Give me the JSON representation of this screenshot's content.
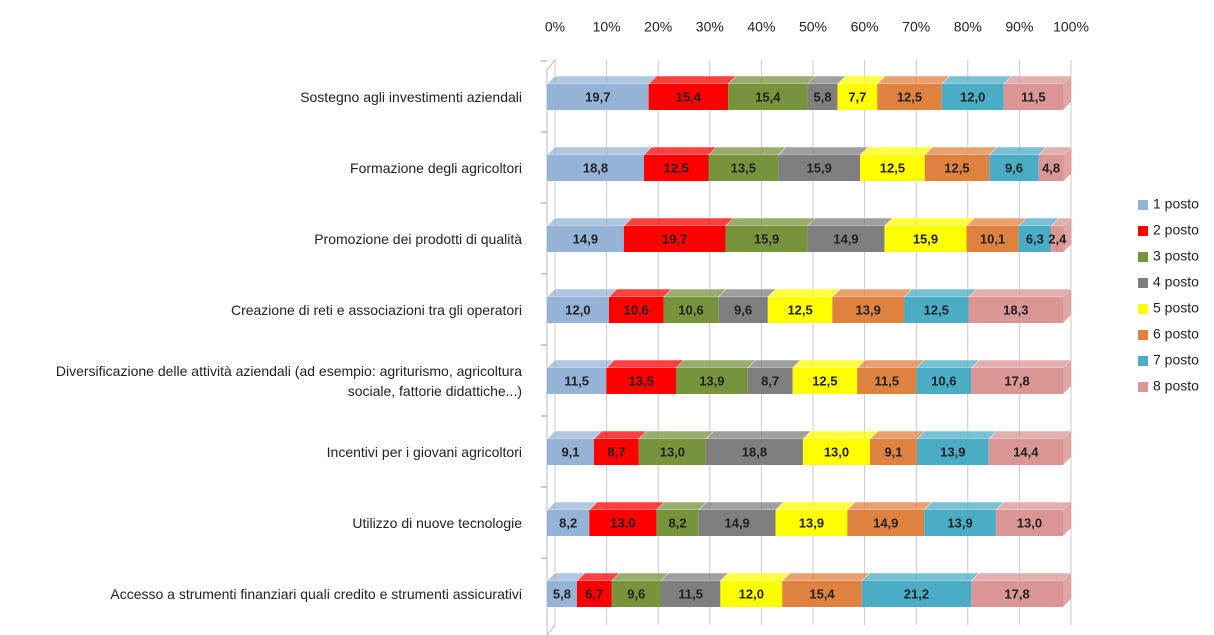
{
  "chart_data": {
    "type": "stacked-bar-horizontal",
    "categories": [
      "Sostegno agli investimenti aziendali",
      "Formazione degli agricoltori",
      "Promozione dei prodotti di qualità",
      "Creazione di reti e associazioni tra gli operatori",
      "Diversificazione delle attività aziendali (ad esempio: agriturismo, agricoltura sociale, fattorie didattiche...)",
      "Incentivi per i giovani agricoltori",
      "Utilizzo di nuove tecnologie",
      "Accesso a strumenti finanziari quali credito e strumenti assicurativi"
    ],
    "series": [
      {
        "name": "1 posto",
        "color": "#95b3d7",
        "values": [
          19.7,
          18.8,
          14.9,
          12.0,
          11.5,
          9.1,
          8.2,
          5.8
        ],
        "value_labels": [
          "19,7",
          "18,8",
          "14,9",
          "12,0",
          "11,5",
          "9,1",
          "8,2",
          "5,8"
        ]
      },
      {
        "name": "2 posto",
        "color": "#ff0000",
        "values": [
          15.4,
          12.5,
          19.7,
          10.6,
          13.5,
          8.7,
          13.0,
          6.7
        ],
        "value_labels": [
          "15,4",
          "12,5",
          "19,7",
          "10,6",
          "13,5",
          "8,7",
          "13,0",
          "6,7"
        ]
      },
      {
        "name": "3 posto",
        "color": "#77933c",
        "values": [
          15.4,
          13.5,
          15.9,
          10.6,
          13.9,
          13.0,
          8.2,
          9.6
        ],
        "value_labels": [
          "15,4",
          "13,5",
          "15,9",
          "10,6",
          "13,9",
          "13,0",
          "8,2",
          "9,6"
        ]
      },
      {
        "name": "4 posto",
        "color": "#7f7f7f",
        "values": [
          5.8,
          15.9,
          14.9,
          9.6,
          8.7,
          18.8,
          14.9,
          11.5
        ],
        "value_labels": [
          "5,8",
          "15,9",
          "14,9",
          "9,6",
          "8,7",
          "18,8",
          "14,9",
          "11,5"
        ]
      },
      {
        "name": "5 posto",
        "color": "#ffff00",
        "values": [
          7.7,
          12.5,
          15.9,
          12.5,
          12.5,
          13.0,
          13.9,
          12.0
        ],
        "value_labels": [
          "7,7",
          "12,5",
          "15,9",
          "12,5",
          "12,5",
          "13,0",
          "13,9",
          "12,0"
        ]
      },
      {
        "name": "6 posto",
        "color": "#e0823f",
        "values": [
          12.5,
          12.5,
          10.1,
          13.9,
          11.5,
          9.1,
          14.9,
          15.4
        ],
        "value_labels": [
          "12,5",
          "12,5",
          "10,1",
          "13,9",
          "11,5",
          "9,1",
          "14,9",
          "15,4"
        ]
      },
      {
        "name": "7 posto",
        "color": "#4bacc6",
        "values": [
          12.0,
          9.6,
          6.3,
          12.5,
          10.6,
          13.9,
          13.9,
          21.2
        ],
        "value_labels": [
          "12,0",
          "9,6",
          "6,3",
          "12,5",
          "10,6",
          "13,9",
          "13,9",
          "21,2"
        ]
      },
      {
        "name": "8 posto",
        "color": "#d99694",
        "values": [
          11.5,
          4.8,
          2.4,
          18.3,
          17.8,
          14.4,
          13.0,
          17.8
        ],
        "value_labels": [
          "11,5",
          "4,8",
          "2,4",
          "18,3",
          "17,8",
          "14,4",
          "13,0",
          "17,8"
        ]
      }
    ],
    "xlim": [
      0,
      100
    ],
    "xticks": [
      {
        "value": 0,
        "label": "0%"
      },
      {
        "value": 10,
        "label": "10%"
      },
      {
        "value": 20,
        "label": "20%"
      },
      {
        "value": 30,
        "label": "30%"
      },
      {
        "value": 40,
        "label": "40%"
      },
      {
        "value": 50,
        "label": "50%"
      },
      {
        "value": 60,
        "label": "60%"
      },
      {
        "value": 70,
        "label": "70%"
      },
      {
        "value": 80,
        "label": "80%"
      },
      {
        "value": 90,
        "label": "90%"
      },
      {
        "value": 100,
        "label": "100%"
      }
    ],
    "grid": true,
    "legend": "right"
  }
}
